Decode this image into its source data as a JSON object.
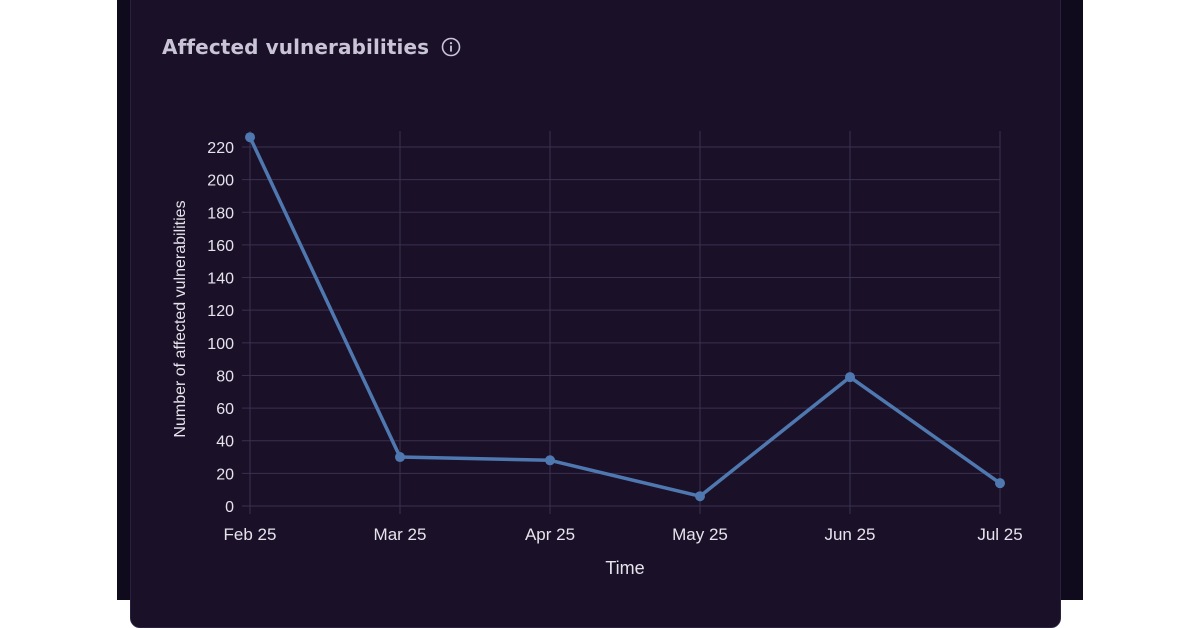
{
  "card": {
    "title": "Affected vulnerabilities",
    "info_icon": "info-circle-icon"
  },
  "colors": {
    "background": "#1a1128",
    "line": "#4f78b0",
    "grid": "#3a3150",
    "text": "#e6e3ec"
  },
  "chart_data": {
    "type": "line",
    "title": "Affected vulnerabilities",
    "xlabel": "Time",
    "ylabel": "Number of affected vulnerabilities",
    "categories": [
      "Feb 25",
      "Mar 25",
      "Apr 25",
      "May 25",
      "Jun 25",
      "Jul 25"
    ],
    "series": [
      {
        "values": [
          226,
          30,
          28,
          6,
          79,
          14
        ]
      }
    ],
    "ylim": [
      0,
      220
    ],
    "yticks": [
      0,
      20,
      40,
      60,
      80,
      100,
      120,
      140,
      160,
      180,
      200,
      220
    ],
    "grid": true,
    "legend": "none"
  }
}
